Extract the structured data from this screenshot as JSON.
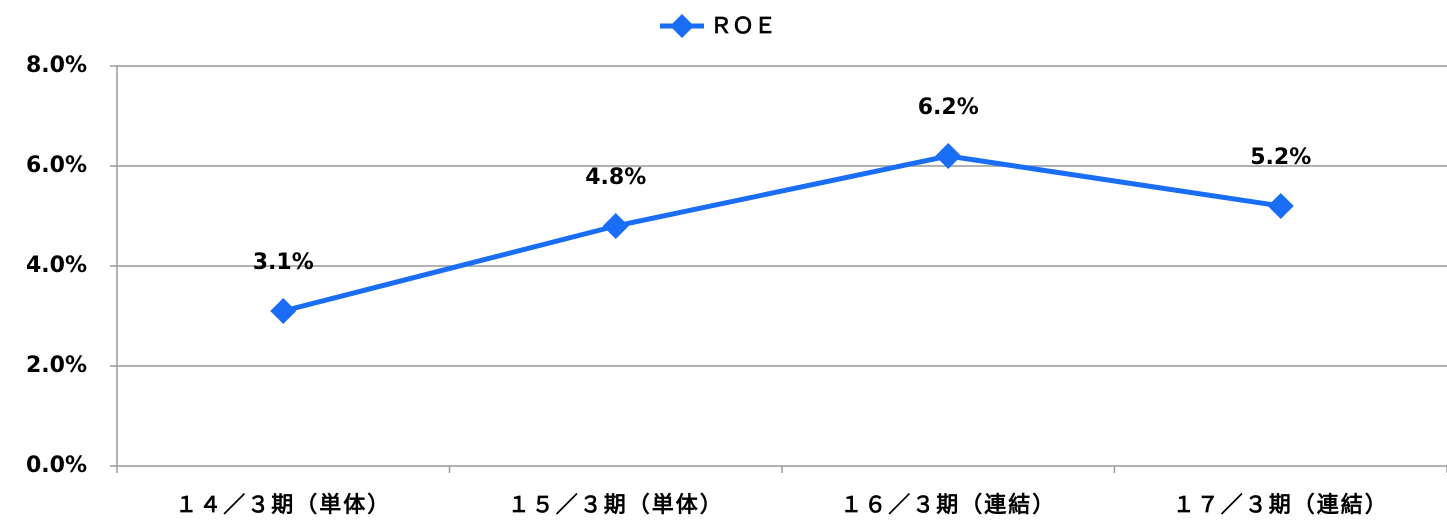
{
  "chart_data": {
    "type": "line",
    "categories": [
      "１４／３期（単体）",
      "１５／３期（単体）",
      "１６／３期（連結）",
      "１７／３期（連結）"
    ],
    "series": [
      {
        "name": "ＲＯＥ",
        "color": "#1a6ef5",
        "values": [
          3.1,
          4.8,
          6.2,
          5.2
        ],
        "value_labels": [
          "3.1%",
          "4.8%",
          "6.2%",
          "5.2%"
        ]
      }
    ],
    "ylim": [
      0,
      8
    ],
    "yticks": [
      {
        "value": 0,
        "label": "0.0%"
      },
      {
        "value": 2,
        "label": "2.0%"
      },
      {
        "value": 4,
        "label": "4.0%"
      },
      {
        "value": 6,
        "label": "6.0%"
      },
      {
        "value": 8,
        "label": "8.0%"
      }
    ],
    "grid": true,
    "legend": "top"
  }
}
